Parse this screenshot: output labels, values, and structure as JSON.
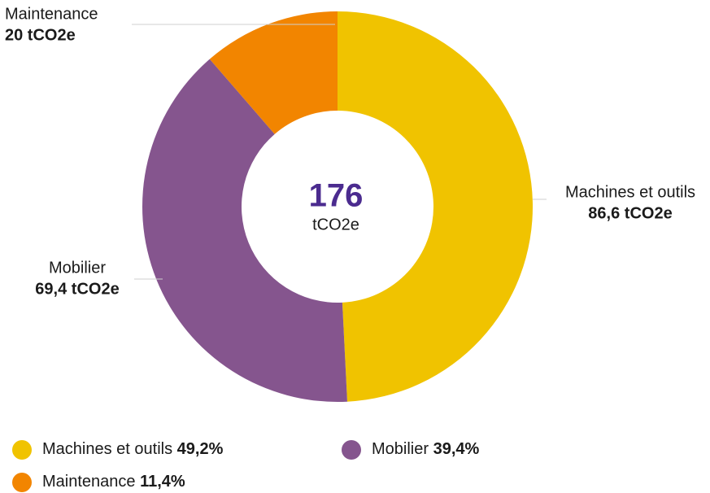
{
  "chart_data": {
    "type": "donut",
    "categories": [
      "Machines et outils",
      "Mobilier",
      "Maintenance"
    ],
    "values": [
      86.6,
      69.4,
      20
    ],
    "value_labels": [
      "86,6 tCO2e",
      "69,4 tCO2e",
      "20 tCO2e"
    ],
    "percent_values": [
      49.2,
      39.4,
      11.4
    ],
    "percent_labels": [
      "49,2%",
      "39,4%",
      "11,4%"
    ],
    "colors": [
      "#f0c300",
      "#85558e",
      "#f28500"
    ],
    "center_value": 176,
    "center_label": "tCO2e"
  }
}
